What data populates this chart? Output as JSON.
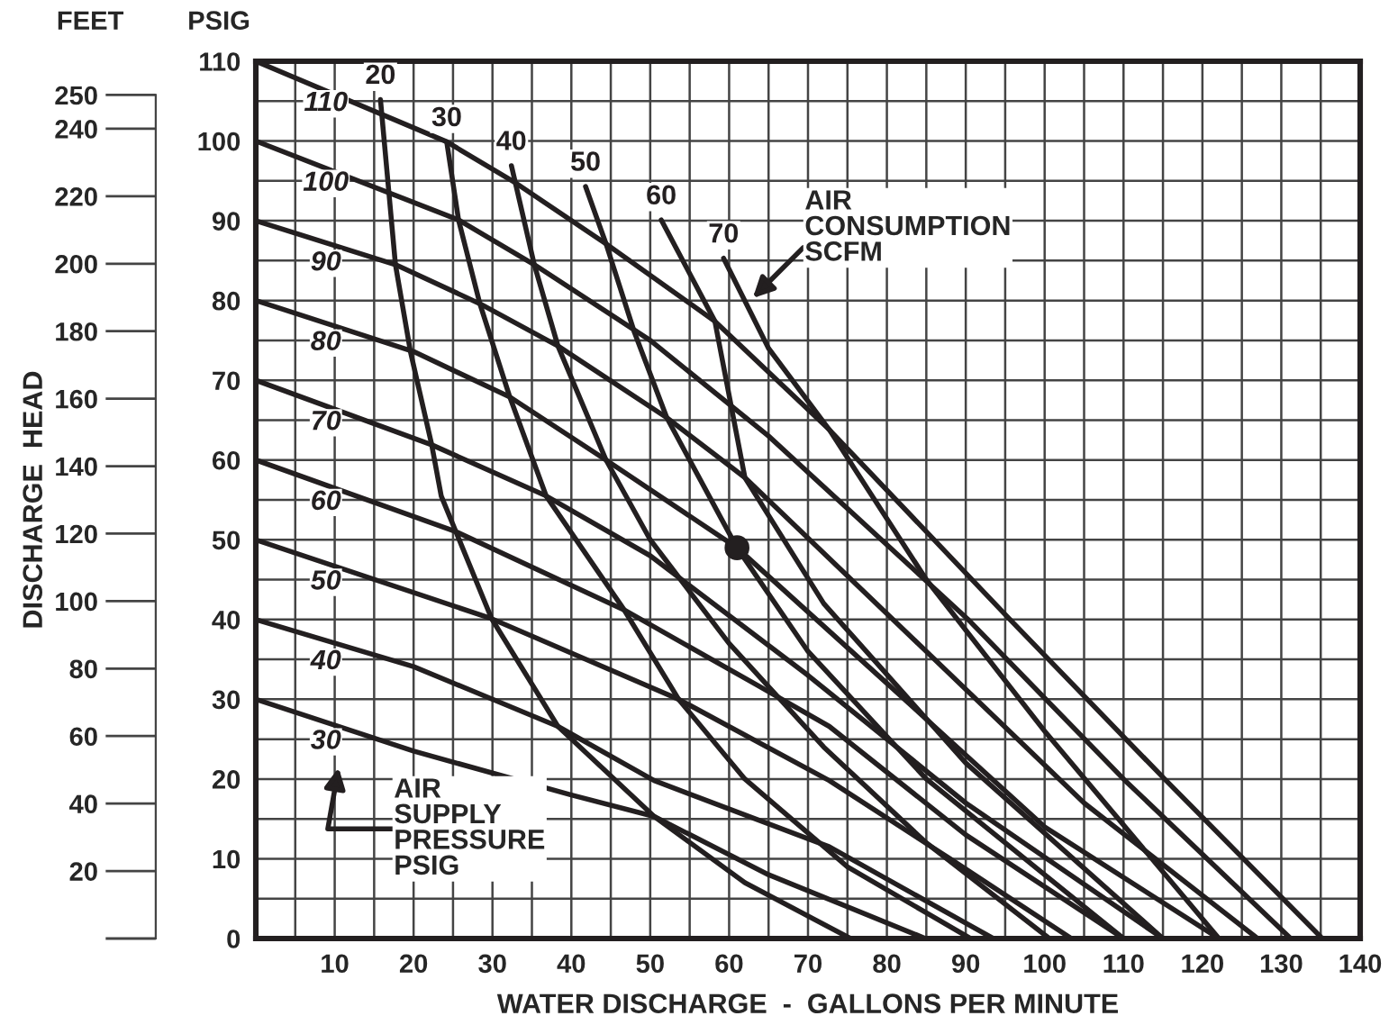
{
  "chart_data": {
    "type": "line",
    "ylabel": "PSIG",
    "y2label": "FEET",
    "xlabel": "WATER DISCHARGE  -  GALLONS PER MINUTE",
    "annotations": [
      "DISCHARGE  HEAD",
      "AIR\nCONSUMPTION\nSCFM",
      "AIR\nSUPPLY\nPRESSURE\nPSIG"
    ],
    "xlim": [
      0,
      140
    ],
    "ylim": [
      0,
      110
    ],
    "y2lim": [
      0,
      260
    ],
    "xticks": [
      {
        "value": 0,
        "label": null
      },
      {
        "value": 5,
        "label": null
      },
      10,
      {
        "value": 15,
        "label": null
      },
      20,
      {
        "value": 25,
        "label": null
      },
      30,
      {
        "value": 35,
        "label": null
      },
      40,
      {
        "value": 45,
        "label": null
      },
      50,
      {
        "value": 55,
        "label": null
      },
      60,
      {
        "value": 65,
        "label": null
      },
      70,
      {
        "value": 75,
        "label": null
      },
      80,
      {
        "value": 85,
        "label": null
      },
      90,
      {
        "value": 95,
        "label": null
      },
      100,
      {
        "value": 105,
        "label": null
      },
      110,
      {
        "value": 115,
        "label": null
      },
      120,
      {
        "value": 125,
        "label": null
      },
      130,
      {
        "value": 135,
        "label": null
      },
      140
    ],
    "yticks": [
      0,
      {
        "value": 5,
        "label": null
      },
      10,
      {
        "value": 15,
        "label": null
      },
      20,
      {
        "value": 25,
        "label": null
      },
      30,
      {
        "value": 35,
        "label": null
      },
      40,
      {
        "value": 45,
        "label": null
      },
      50,
      {
        "value": 55,
        "label": null
      },
      60,
      {
        "value": 65,
        "label": null
      },
      70,
      {
        "value": 75,
        "label": null
      },
      80,
      {
        "value": 85,
        "label": null
      },
      90,
      {
        "value": 95,
        "label": null
      },
      100,
      {
        "value": 105,
        "label": null
      },
      110
    ],
    "y2ticks": [
      {
        "value": 0,
        "label": null
      },
      20,
      40,
      60,
      80,
      100,
      120,
      140,
      160,
      180,
      200,
      220,
      240,
      250
    ],
    "grid": true,
    "legend": false,
    "marker": "none",
    "line_style": "solid",
    "series": [
      {
        "name": "110",
        "color": "#231f20",
        "x": [
          0,
          24.2,
          33.0,
          44.4,
          58.2,
          72.7,
          95.5,
          115.4,
          135.2
        ],
        "values": [
          110,
          99.9,
          94.7,
          87.1,
          77.4,
          63.8,
          40.1,
          19.8,
          0
        ]
      },
      {
        "name": "100",
        "color": "#231f20",
        "x": [
          0,
          25.7,
          35.3,
          50,
          65,
          90.2,
          110,
          131.2
        ],
        "values": [
          100,
          90.1,
          84.5,
          75,
          63,
          40.1,
          20,
          0
        ]
      },
      {
        "name": "90",
        "color": "#231f20",
        "x": [
          0,
          17.7,
          28.4,
          38.3,
          52.1,
          62,
          85,
          105,
          127.0
        ],
        "values": [
          90,
          84.5,
          79.6,
          74.3,
          65.3,
          57.8,
          36,
          17,
          0
        ]
      },
      {
        "name": "80",
        "color": "#231f20",
        "x": [
          0,
          20,
          32.2,
          44.4,
          61,
          80,
          100,
          122.1
        ],
        "values": [
          80,
          73.6,
          67.9,
          60,
          49,
          32,
          14,
          0
        ]
      },
      {
        "name": "70",
        "color": "#231f20",
        "x": [
          0,
          22.3,
          36.8,
          50,
          70,
          90,
          115.0
        ],
        "values": [
          70,
          61.9,
          55.5,
          48,
          33,
          17,
          0
        ]
      },
      {
        "name": "60",
        "color": "#231f20",
        "x": [
          0,
          25.4,
          46.7,
          63.5,
          72.7,
          90,
          110.0
        ],
        "values": [
          60,
          51,
          41.2,
          31.8,
          26.6,
          13,
          0
        ]
      },
      {
        "name": "50",
        "color": "#231f20",
        "x": [
          0,
          29.9,
          53.6,
          72.7,
          88,
          103.4
        ],
        "values": [
          50,
          40.1,
          30,
          19.8,
          10,
          0
        ]
      },
      {
        "name": "40",
        "color": "#231f20",
        "x": [
          0,
          20,
          38.3,
          50.5,
          72.7,
          93.5
        ],
        "values": [
          40,
          34.1,
          26.6,
          19.8,
          11.5,
          0
        ]
      },
      {
        "name": "30",
        "color": "#231f20",
        "x": [
          0,
          20,
          40,
          50.5,
          65,
          84.9
        ],
        "values": [
          30,
          23.5,
          18,
          15.3,
          8,
          0
        ]
      },
      {
        "name": "20",
        "color": "#231f20",
        "x": [
          15.8,
          17.7,
          19.6,
          22.3,
          23.5,
          29.9,
          38.3,
          50.5,
          62,
          75.4
        ],
        "values": [
          105.2,
          84.5,
          73.6,
          61.9,
          55.5,
          40.1,
          26.6,
          15.3,
          7,
          0
        ]
      },
      {
        "name": "30",
        "color": "#231f20",
        "x": [
          24.2,
          25.7,
          28.4,
          32.2,
          36.8,
          46.7,
          53.6,
          62,
          75,
          90.6
        ],
        "values": [
          99.9,
          90.1,
          79.6,
          67.9,
          55.5,
          41.2,
          30,
          20,
          9,
          0
        ]
      },
      {
        "name": "40",
        "color": "#231f20",
        "x": [
          32.4,
          35.3,
          38.3,
          44.4,
          50,
          60,
          72,
          85,
          100.6
        ],
        "values": [
          96.9,
          84.5,
          74.3,
          60,
          50,
          37,
          24,
          12,
          0
        ]
      },
      {
        "name": "50",
        "color": "#231f20",
        "x": [
          41.8,
          44.4,
          48,
          52.1,
          61,
          70,
          85,
          110.0
        ],
        "values": [
          94.3,
          87.1,
          76,
          65.3,
          49,
          36,
          20,
          0
        ]
      },
      {
        "name": "60",
        "color": "#231f20",
        "x": [
          51.4,
          58.2,
          62,
          72,
          90,
          115.0
        ],
        "values": [
          90.1,
          77.4,
          57.8,
          42,
          22,
          0
        ]
      },
      {
        "name": "70",
        "color": "#231f20",
        "x": [
          59.3,
          65,
          72.7,
          85,
          100,
          122.1
        ],
        "values": [
          85.3,
          74,
          63.8,
          45,
          26,
          0
        ]
      },
      {
        "type": "scatter",
        "marker": "circle",
        "color": "#231f20",
        "x": [
          61
        ],
        "values": [
          49
        ]
      }
    ]
  }
}
